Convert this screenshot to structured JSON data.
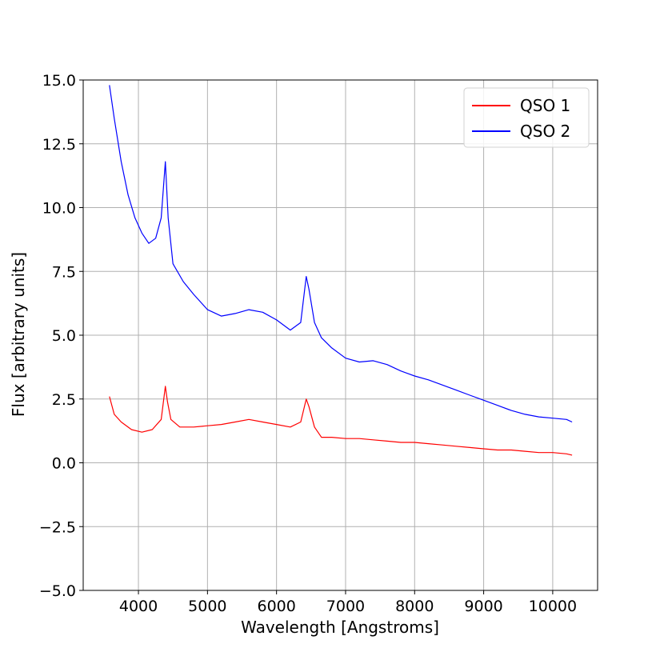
{
  "chart_data": {
    "type": "line",
    "title": "",
    "xlabel": "Wavelength [Angstroms]",
    "ylabel": "Flux [arbitrary units]",
    "xlim": [
      3200,
      10650
    ],
    "ylim": [
      -5.0,
      15.0
    ],
    "xticks": [
      4000,
      5000,
      6000,
      7000,
      8000,
      9000,
      10000
    ],
    "yticks": [
      -5.0,
      -2.5,
      0.0,
      2.5,
      5.0,
      7.5,
      10.0,
      12.5,
      15.0
    ],
    "xtick_labels": [
      "4000",
      "5000",
      "6000",
      "7000",
      "8000",
      "9000",
      "10000"
    ],
    "ytick_labels": [
      "−5.0",
      "−2.5",
      "0.0",
      "2.5",
      "5.0",
      "7.5",
      "10.0",
      "12.5",
      "15.0"
    ],
    "grid": true,
    "legend_position": "top-right",
    "series": [
      {
        "name": "QSO 1",
        "color": "#ff0000",
        "x": [
          3580,
          3650,
          3750,
          3900,
          4050,
          4200,
          4330,
          4390,
          4420,
          4470,
          4600,
          4800,
          5000,
          5200,
          5400,
          5600,
          5800,
          6000,
          6200,
          6350,
          6430,
          6470,
          6550,
          6650,
          6800,
          7000,
          7200,
          7400,
          7600,
          7800,
          8000,
          8200,
          8400,
          8600,
          8800,
          9000,
          9200,
          9400,
          9600,
          9800,
          10000,
          10200,
          10280
        ],
        "y": [
          2.6,
          1.9,
          1.6,
          1.3,
          1.2,
          1.3,
          1.7,
          3.0,
          2.4,
          1.7,
          1.4,
          1.4,
          1.45,
          1.5,
          1.6,
          1.7,
          1.6,
          1.5,
          1.4,
          1.6,
          2.5,
          2.2,
          1.4,
          1.0,
          1.0,
          0.95,
          0.95,
          0.9,
          0.85,
          0.8,
          0.8,
          0.75,
          0.7,
          0.65,
          0.6,
          0.55,
          0.5,
          0.5,
          0.45,
          0.4,
          0.4,
          0.35,
          0.3
        ]
      },
      {
        "name": "QSO 2",
        "color": "#0000ff",
        "x": [
          3580,
          3650,
          3750,
          3850,
          3950,
          4050,
          4150,
          4250,
          4330,
          4390,
          4430,
          4500,
          4650,
          4800,
          5000,
          5200,
          5400,
          5600,
          5800,
          6000,
          6200,
          6350,
          6430,
          6470,
          6550,
          6650,
          6800,
          7000,
          7200,
          7400,
          7600,
          7800,
          8000,
          8200,
          8400,
          8600,
          8800,
          9000,
          9200,
          9400,
          9600,
          9800,
          10000,
          10200,
          10280
        ],
        "y": [
          14.8,
          13.5,
          11.8,
          10.5,
          9.6,
          9.0,
          8.6,
          8.8,
          9.6,
          11.8,
          9.6,
          7.8,
          7.1,
          6.6,
          6.0,
          5.75,
          5.85,
          6.0,
          5.9,
          5.6,
          5.2,
          5.5,
          7.3,
          6.8,
          5.5,
          4.9,
          4.5,
          4.1,
          3.95,
          4.0,
          3.85,
          3.6,
          3.4,
          3.25,
          3.05,
          2.85,
          2.65,
          2.45,
          2.25,
          2.05,
          1.9,
          1.8,
          1.75,
          1.7,
          1.6
        ]
      }
    ]
  }
}
